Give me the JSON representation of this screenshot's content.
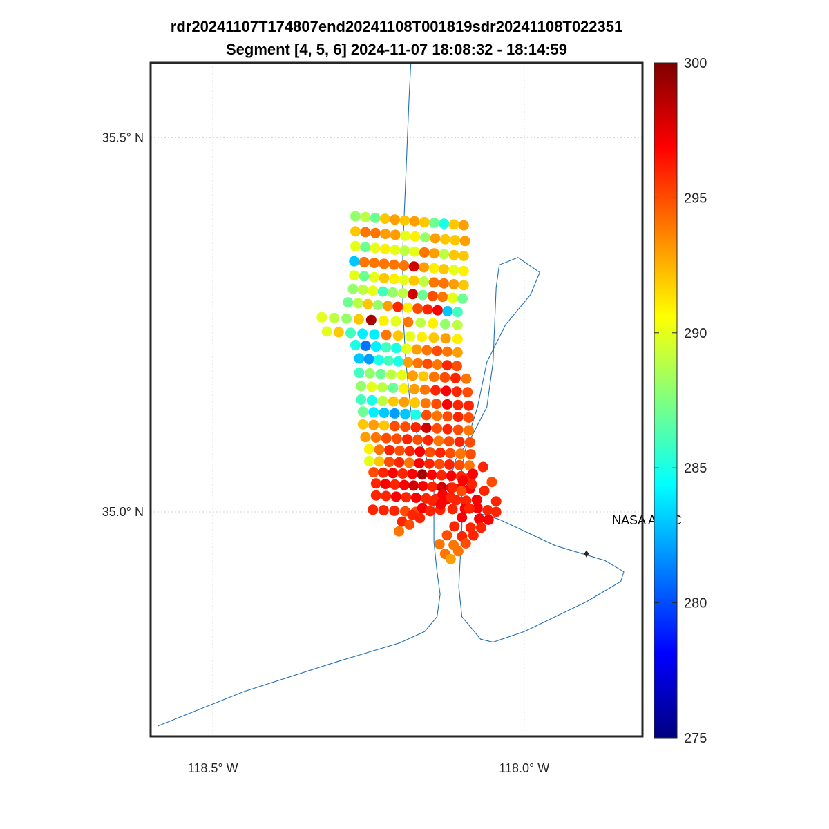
{
  "chart_data": {
    "type": "scatter",
    "title": "rdr20241107T174807end20241108T001819sdr20241108T022351",
    "subtitle": "Segment [4, 5, 6] 2024-11-07 18:08:32 - 18:14:59",
    "xlabel": "",
    "ylabel": "",
    "xlim": [
      -118.6,
      -117.81
    ],
    "ylim": [
      34.7,
      35.6
    ],
    "x_ticks": [
      {
        "value": -118.5,
        "label": "118.5° W"
      },
      {
        "value": -118.0,
        "label": "118.0° W"
      }
    ],
    "y_ticks": [
      {
        "value": 35.5,
        "label": "35.5° N"
      },
      {
        "value": 35.0,
        "label": "35.0° N"
      }
    ],
    "grid": true,
    "colorbar": {
      "min": 275,
      "max": 300,
      "colormap": "jet",
      "ticks": [
        "275",
        "280",
        "285",
        "290",
        "295",
        "300"
      ]
    },
    "annotation": {
      "text": "NASA AFRC",
      "marker_lon": -117.9,
      "marker_lat": 34.944
    },
    "flight_track": [
      [
        -118.588,
        34.714
      ],
      [
        -118.45,
        34.76
      ],
      [
        -118.3,
        34.8
      ],
      [
        -118.2,
        34.825
      ],
      [
        -118.16,
        34.84
      ],
      [
        -118.14,
        34.86
      ],
      [
        -118.135,
        34.89
      ],
      [
        -118.14,
        34.92
      ],
      [
        -118.145,
        34.96
      ],
      [
        -118.145,
        35.04
      ],
      [
        -118.16,
        35.08
      ],
      [
        -118.18,
        35.12
      ],
      [
        -118.19,
        35.2
      ],
      [
        -118.195,
        35.27
      ],
      [
        -118.195,
        35.35
      ],
      [
        -118.19,
        35.45
      ],
      [
        -118.185,
        35.55
      ],
      [
        -118.182,
        35.6
      ]
    ],
    "flight_track_2": [
      [
        -118.12,
        35.04
      ],
      [
        -118.11,
        35.07
      ],
      [
        -118.085,
        35.1
      ],
      [
        -118.06,
        35.14
      ],
      [
        -118.05,
        35.2
      ],
      [
        -118.045,
        35.3
      ],
      [
        -118.04,
        35.33
      ],
      [
        -118.01,
        35.34
      ],
      [
        -117.975,
        35.32
      ],
      [
        -117.99,
        35.29
      ],
      [
        -118.03,
        35.25
      ],
      [
        -118.06,
        35.2
      ],
      [
        -118.075,
        35.14
      ],
      [
        -118.09,
        35.1
      ],
      [
        -118.1,
        35.06
      ],
      [
        -118.1,
        34.98
      ],
      [
        -118.105,
        34.9
      ],
      [
        -118.1,
        34.86
      ],
      [
        -118.07,
        34.83
      ],
      [
        -118.05,
        34.826
      ],
      [
        -118.0,
        34.84
      ],
      [
        -117.9,
        34.88
      ],
      [
        -117.845,
        34.907
      ],
      [
        -117.84,
        34.92
      ],
      [
        -117.87,
        34.935
      ],
      [
        -117.95,
        34.955
      ],
      [
        -118.04,
        34.99
      ],
      [
        -118.08,
        35.0
      ],
      [
        -118.1,
        35.01
      ]
    ],
    "swaths": [
      {
        "lon0": -118.271,
        "lat0": 35.395,
        "lon1": -118.097,
        "lat1": 35.383,
        "n": 12,
        "values": [
          288,
          289,
          287,
          292,
          293,
          292,
          293,
          292,
          287,
          285,
          292,
          293
        ]
      },
      {
        "lon0": -118.271,
        "lat0": 35.375,
        "lon1": -118.095,
        "lat1": 35.362,
        "n": 12,
        "values": [
          292,
          294,
          294,
          293,
          293,
          290,
          291,
          288,
          293,
          292,
          292,
          293
        ]
      },
      {
        "lon0": -118.271,
        "lat0": 35.355,
        "lon1": -118.097,
        "lat1": 35.342,
        "n": 12,
        "values": [
          290,
          287,
          290,
          291,
          290,
          289,
          290,
          294,
          293,
          289,
          292,
          292
        ]
      },
      {
        "lon0": -118.273,
        "lat0": 35.335,
        "lon1": -118.097,
        "lat1": 35.322,
        "n": 12,
        "values": [
          283,
          294,
          294,
          294,
          294,
          294,
          298,
          293,
          291,
          292,
          290,
          291
        ]
      },
      {
        "lon0": -118.273,
        "lat0": 35.316,
        "lon1": -118.097,
        "lat1": 35.303,
        "n": 12,
        "values": [
          290,
          287,
          290,
          292,
          291,
          290,
          292,
          289,
          294,
          294,
          293,
          292
        ]
      },
      {
        "lon0": -118.275,
        "lat0": 35.298,
        "lon1": -118.099,
        "lat1": 35.285,
        "n": 12,
        "values": [
          288,
          289,
          290,
          286,
          288,
          289,
          298,
          287,
          295,
          294,
          290,
          287
        ]
      },
      {
        "lon0": -118.283,
        "lat0": 35.28,
        "lon1": -118.107,
        "lat1": 35.267,
        "n": 12,
        "values": [
          287,
          289,
          292,
          288,
          293,
          296,
          291,
          295,
          296,
          297,
          283,
          286
        ]
      },
      {
        "lon0": -118.325,
        "lat0": 35.26,
        "lon1": -118.107,
        "lat1": 35.25,
        "n": 12,
        "values": [
          290,
          289,
          288,
          292,
          299,
          291,
          290,
          294,
          289,
          291,
          288,
          289
        ]
      },
      {
        "lon0": -118.317,
        "lat0": 35.241,
        "lon1": -118.107,
        "lat1": 35.231,
        "n": 12,
        "values": [
          290,
          292,
          286,
          284,
          284,
          294,
          292,
          290,
          291,
          292,
          293,
          291
        ]
      },
      {
        "lon0": -118.271,
        "lat0": 35.223,
        "lon1": -118.107,
        "lat1": 35.213,
        "n": 11,
        "values": [
          285,
          281,
          284,
          286,
          285,
          290,
          293,
          294,
          295,
          294,
          293
        ]
      },
      {
        "lon0": -118.265,
        "lat0": 35.205,
        "lon1": -118.108,
        "lat1": 35.195,
        "n": 11,
        "values": [
          283,
          282,
          285,
          286,
          285,
          293,
          294,
          295,
          294,
          296,
          295
        ]
      },
      {
        "lon0": -118.265,
        "lat0": 35.186,
        "lon1": -118.093,
        "lat1": 35.178,
        "n": 11,
        "values": [
          286,
          288,
          287,
          289,
          290,
          293,
          292,
          294,
          295,
          296,
          294
        ]
      },
      {
        "lon0": -118.262,
        "lat0": 35.168,
        "lon1": -118.091,
        "lat1": 35.16,
        "n": 11,
        "values": [
          288,
          290,
          289,
          287,
          291,
          293,
          294,
          296,
          297,
          296,
          295
        ]
      },
      {
        "lon0": -118.262,
        "lat0": 35.15,
        "lon1": -118.089,
        "lat1": 35.142,
        "n": 11,
        "values": [
          286,
          285,
          289,
          292,
          293,
          292,
          294,
          295,
          297,
          296,
          296
        ]
      },
      {
        "lon0": -118.259,
        "lat0": 35.134,
        "lon1": -118.089,
        "lat1": 35.126,
        "n": 11,
        "values": [
          287,
          284,
          283,
          282,
          283,
          285,
          295,
          294,
          295,
          296,
          295
        ]
      },
      {
        "lon0": -118.259,
        "lat0": 35.117,
        "lon1": -118.089,
        "lat1": 35.109,
        "n": 11,
        "values": [
          292,
          293,
          292,
          295,
          295,
          296,
          298,
          295,
          296,
          295,
          294
        ]
      },
      {
        "lon0": -118.255,
        "lat0": 35.1,
        "lon1": -118.087,
        "lat1": 35.093,
        "n": 11,
        "values": [
          293,
          294,
          295,
          295,
          296,
          295,
          296,
          294,
          295,
          296,
          295
        ]
      },
      {
        "lon0": -118.249,
        "lat0": 35.084,
        "lon1": -118.086,
        "lat1": 35.077,
        "n": 11,
        "values": [
          291,
          294,
          296,
          295,
          296,
          297,
          295,
          296,
          295,
          294,
          295
        ]
      },
      {
        "lon0": -118.249,
        "lat0": 35.068,
        "lon1": -118.088,
        "lat1": 35.062,
        "n": 11,
        "values": [
          290,
          292,
          295,
          296,
          294,
          297,
          296,
          295,
          296,
          295,
          294
        ]
      },
      {
        "lon0": -118.242,
        "lat0": 35.053,
        "lon1": -118.086,
        "lat1": 35.047,
        "n": 11,
        "values": [
          295,
          296,
          297,
          296,
          297,
          299,
          297,
          296,
          297,
          296,
          296
        ]
      },
      {
        "lon0": -118.238,
        "lat0": 35.038,
        "lon1": -118.087,
        "lat1": 35.031,
        "n": 11,
        "values": [
          296,
          297,
          296,
          297,
          298,
          297,
          296,
          298,
          297,
          297,
          297
        ]
      },
      {
        "lon0": -118.238,
        "lat0": 35.022,
        "lon1": -118.093,
        "lat1": 35.015,
        "n": 10,
        "values": [
          296,
          296,
          297,
          296,
          297,
          296,
          296,
          297,
          296,
          296
        ]
      },
      {
        "lon0": -118.243,
        "lat0": 35.003,
        "lon1": -118.174,
        "lat1": 35.0,
        "n": 5,
        "values": [
          296,
          296,
          296,
          295,
          295
        ]
      },
      {
        "lon0": -118.135,
        "lat0": 35.003,
        "lon1": -118.075,
        "lat1": 35.005,
        "n": 4,
        "values": [
          296,
          296,
          297,
          297
        ]
      },
      {
        "lon0": -118.196,
        "lat0": 34.987,
        "lon1": -118.066,
        "lat1": 35.06,
        "n": 9,
        "values": [
          296,
          296,
          297,
          296,
          297,
          296,
          297,
          297,
          296
        ]
      },
      {
        "lon0": -118.201,
        "lat0": 34.974,
        "lon1": -118.084,
        "lat1": 35.037,
        "n": 8,
        "values": [
          294,
          295,
          296,
          296,
          297,
          296,
          295,
          296
        ]
      },
      {
        "lon0": -118.136,
        "lat0": 34.957,
        "lon1": -118.052,
        "lat1": 35.04,
        "n": 8,
        "values": [
          294,
          295,
          296,
          297,
          296,
          297,
          296,
          295
        ]
      },
      {
        "lon0": -118.127,
        "lat0": 34.944,
        "lon1": -118.045,
        "lat1": 35.014,
        "n": 7,
        "values": [
          294,
          294,
          296,
          296,
          297,
          296,
          296
        ]
      },
      {
        "lon0": -118.118,
        "lat0": 34.937,
        "lon1": -118.045,
        "lat1": 35.0,
        "n": 7,
        "values": [
          293,
          294,
          295,
          296,
          296,
          297,
          296
        ]
      }
    ]
  }
}
